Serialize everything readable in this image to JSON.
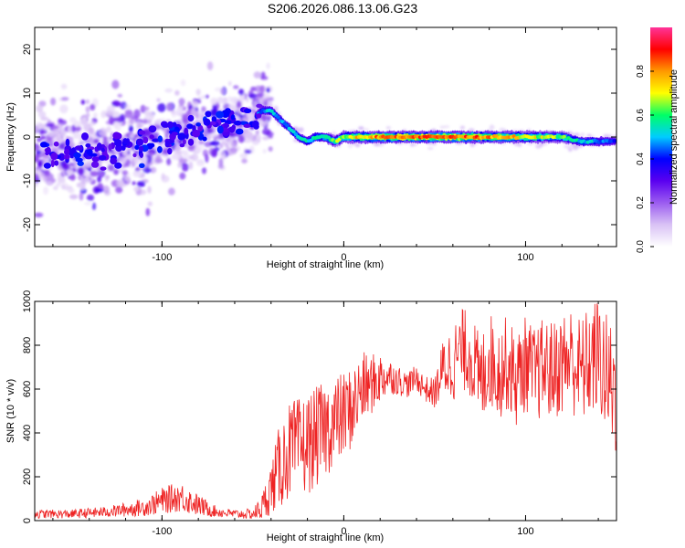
{
  "title": "S206.2026.086.13.06.G23",
  "chart_data": [
    {
      "type": "heatmap",
      "xlabel": "Height of straight line (km)",
      "ylabel": "Frequency (Hz)",
      "xlim": [
        -170,
        150
      ],
      "ylim": [
        -25,
        25
      ],
      "xticks": [
        -100,
        0,
        100
      ],
      "yticks": [
        -20,
        -10,
        0,
        10,
        20
      ],
      "colorbar": {
        "label": "Normalized spectral amplitude",
        "range": [
          0,
          1
        ],
        "ticks": [
          "0.0",
          "0.2",
          "0.4",
          "0.6",
          "0.8"
        ],
        "tick_values": [
          0.0,
          0.2,
          0.4,
          0.6,
          0.8
        ],
        "colors": [
          "#ffffff",
          "#d9c2f5",
          "#9b5cf0",
          "#5a00f0",
          "#0000ff",
          "#00ccff",
          "#00ff66",
          "#ffff00",
          "#ff9900",
          "#ff0000",
          "#ff3399"
        ]
      },
      "ridge": {
        "x": [
          -170,
          -150,
          -130,
          -110,
          -90,
          -70,
          -50,
          -45,
          -40,
          -35,
          -30,
          -25,
          -20,
          -15,
          -10,
          -5,
          0,
          10,
          20,
          40,
          60,
          80,
          100,
          120,
          130,
          140,
          150
        ],
        "freq": [
          -4,
          -4,
          -3,
          -2,
          1,
          3,
          4,
          6,
          6,
          4,
          2,
          0,
          -1,
          0,
          0,
          -1,
          0,
          0,
          0,
          0,
          0,
          0,
          0,
          0,
          -1,
          -1,
          -1
        ],
        "amplitude": [
          0.3,
          0.35,
          0.4,
          0.35,
          0.3,
          0.3,
          0.4,
          0.5,
          0.55,
          0.5,
          0.5,
          0.55,
          0.55,
          0.6,
          0.6,
          0.65,
          0.7,
          0.8,
          0.85,
          0.9,
          0.9,
          0.85,
          0.75,
          0.65,
          0.55,
          0.5,
          0.45
        ]
      }
    },
    {
      "type": "line",
      "xlabel": "Height of straight line (km)",
      "ylabel": "SNR (10 * v/v)",
      "xlim": [
        -170,
        150
      ],
      "ylim": [
        0,
        1000
      ],
      "xticks": [
        -100,
        0,
        100
      ],
      "yticks": [
        0,
        200,
        400,
        600,
        800,
        1000
      ],
      "color": "#ee2222",
      "series": [
        {
          "name": "SNR",
          "x": [
            -170,
            -150,
            -130,
            -110,
            -100,
            -90,
            -80,
            -70,
            -60,
            -50,
            -45,
            -40,
            -35,
            -30,
            -25,
            -20,
            -15,
            -10,
            -5,
            0,
            5,
            10,
            15,
            20,
            25,
            30,
            35,
            40,
            45,
            50,
            55,
            60,
            65,
            70,
            75,
            80,
            85,
            90,
            95,
            100,
            105,
            110,
            115,
            120,
            125,
            130,
            135,
            140,
            145,
            150
          ],
          "values": [
            30,
            30,
            40,
            60,
            90,
            110,
            70,
            40,
            30,
            30,
            60,
            150,
            250,
            320,
            330,
            350,
            380,
            420,
            450,
            480,
            520,
            600,
            620,
            650,
            660,
            640,
            620,
            650,
            600,
            580,
            700,
            720,
            780,
            760,
            620,
            740,
            680,
            720,
            640,
            720,
            660,
            700,
            680,
            720,
            740,
            680,
            720,
            760,
            640,
            600
          ],
          "spread": [
            20,
            20,
            25,
            40,
            60,
            70,
            50,
            25,
            20,
            25,
            60,
            120,
            200,
            220,
            230,
            230,
            230,
            220,
            210,
            200,
            190,
            170,
            140,
            120,
            80,
            70,
            60,
            60,
            60,
            70,
            150,
            180,
            190,
            200,
            220,
            220,
            220,
            220,
            220,
            220,
            220,
            230,
            230,
            240,
            250,
            250,
            260,
            270,
            300,
            320
          ]
        }
      ]
    }
  ]
}
